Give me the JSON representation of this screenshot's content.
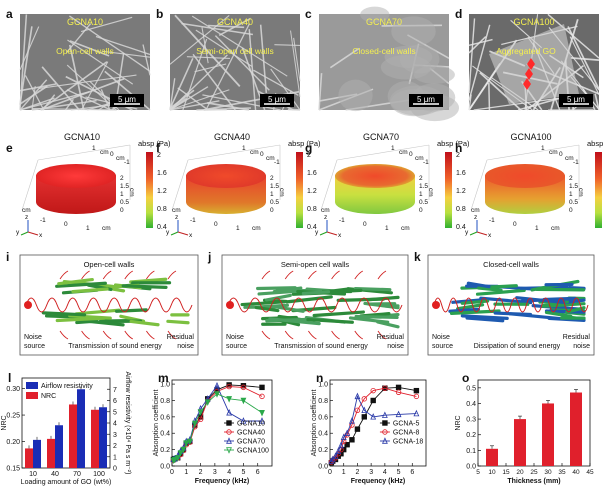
{
  "row1": {
    "panels": [
      {
        "letter": "a",
        "title": "GCNA10",
        "note": "Open-cell walls",
        "scale": "5 μm"
      },
      {
        "letter": "b",
        "title": "GCNA40",
        "note": "Semi-open cell walls",
        "scale": "5 μm"
      },
      {
        "letter": "c",
        "title": "GCNA70",
        "note": "Closed-cell walls",
        "scale": "5 μm"
      },
      {
        "letter": "d",
        "title": "GCNA100",
        "note": "Aggregated GO",
        "scale": "5 μm"
      }
    ]
  },
  "row2": {
    "panels": [
      {
        "letter": "e",
        "title": "GCNA10"
      },
      {
        "letter": "f",
        "title": "GCNA40"
      },
      {
        "letter": "g",
        "title": "GCNA70"
      },
      {
        "letter": "h",
        "title": "GCNA100"
      }
    ],
    "colorbar_label": "absp (Pa)",
    "colorbar_ticks": [
      "2",
      "1.6",
      "1.2",
      "0.8",
      "0.4"
    ],
    "axis_unit": "cm",
    "axis_ticks": [
      "1",
      "0",
      "-1",
      "2",
      "1.5",
      "1",
      "0.5",
      "0",
      "-1",
      "0",
      "1"
    ],
    "axis_letters": {
      "x": "x",
      "y": "y",
      "z": "z"
    }
  },
  "row3": {
    "panels": [
      {
        "letter": "i",
        "title": "Open-cell walls",
        "left": "Noise\nsource",
        "middle": "Transmission of sound energy",
        "right": "Residual\nnoise"
      },
      {
        "letter": "j",
        "title": "Semi-open cell walls",
        "left": "Noise\nsource",
        "middle": "Transmission of sound energy",
        "right": "Residual\nnoise"
      },
      {
        "letter": "k",
        "title": "Closed-cell walls",
        "left": "Noise\nsource",
        "middle": "Dissipation of sound energy",
        "right": "Residual\nnoise"
      }
    ]
  },
  "chart_data": [
    {
      "letter": "l",
      "type": "bar",
      "categories": [
        "10",
        "40",
        "70",
        "100"
      ],
      "series": [
        {
          "name": "Airflow resistivity",
          "color": "#1a2db5",
          "axis": "right",
          "values": [
            2.5,
            3.8,
            7.0,
            5.4
          ]
        },
        {
          "name": "NRC",
          "color": "#e0202c",
          "axis": "left",
          "values": [
            0.187,
            0.205,
            0.27,
            0.26
          ]
        }
      ],
      "xlabel": "Loading amount of GO (wt%)",
      "ylabel": "NRC",
      "ylabel_right": "Airflow resistivity (×10⁴ Pa s m⁻²)",
      "ylim": [
        0.15,
        0.32
      ],
      "yticks": [
        "0.15",
        "0.20",
        "0.25",
        "0.30"
      ],
      "ylim_right": [
        0,
        8
      ],
      "yticks_right": [
        "0",
        "1",
        "2",
        "3",
        "4",
        "5",
        "6",
        "7"
      ]
    },
    {
      "letter": "m",
      "type": "line",
      "x": [
        0.1,
        0.2,
        0.4,
        0.6,
        0.8,
        1.0,
        1.25,
        1.6,
        2.0,
        2.5,
        3.15,
        4.0,
        5.0,
        6.3
      ],
      "series": [
        {
          "name": "GCNA10",
          "color": "#111111",
          "marker": "square",
          "values": [
            0.08,
            0.09,
            0.1,
            0.15,
            0.2,
            0.28,
            0.3,
            0.5,
            0.6,
            0.82,
            0.93,
            0.99,
            0.98,
            0.96
          ]
        },
        {
          "name": "GCNA40",
          "color": "#e0202c",
          "marker": "circle",
          "values": [
            0.07,
            0.08,
            0.1,
            0.14,
            0.19,
            0.26,
            0.29,
            0.48,
            0.57,
            0.8,
            0.91,
            0.97,
            0.96,
            0.85
          ]
        },
        {
          "name": "GCNA70",
          "color": "#2a3aa8",
          "marker": "triangle",
          "values": [
            0.08,
            0.09,
            0.12,
            0.18,
            0.22,
            0.3,
            0.32,
            0.55,
            0.7,
            0.82,
            0.98,
            0.65,
            0.55,
            0.55
          ]
        },
        {
          "name": "GCNA100",
          "color": "#2aa84a",
          "marker": "triangle-down",
          "values": [
            0.07,
            0.08,
            0.1,
            0.16,
            0.2,
            0.28,
            0.3,
            0.52,
            0.66,
            0.78,
            0.88,
            0.82,
            0.8,
            0.65
          ]
        }
      ],
      "xlabel": "Frequency (kHz)",
      "ylabel": "Absorption coefficient",
      "xlim": [
        0,
        7
      ],
      "xticks": [
        "0",
        "1",
        "2",
        "3",
        "4",
        "5",
        "6"
      ],
      "ylim": [
        0,
        1.05
      ],
      "yticks": [
        "0.0",
        "0.2",
        "0.4",
        "0.6",
        "0.8",
        "1.0"
      ]
    },
    {
      "letter": "n",
      "type": "line",
      "x": [
        0.1,
        0.2,
        0.4,
        0.6,
        0.8,
        1.0,
        1.25,
        1.6,
        2.0,
        2.5,
        3.15,
        4.0,
        5.0,
        6.3
      ],
      "series": [
        {
          "name": "GCNA-5",
          "color": "#111111",
          "marker": "square",
          "values": [
            0.04,
            0.06,
            0.08,
            0.12,
            0.15,
            0.2,
            0.26,
            0.32,
            0.45,
            0.6,
            0.8,
            0.95,
            0.96,
            0.92
          ]
        },
        {
          "name": "GCNA-8",
          "color": "#e0202c",
          "marker": "circle",
          "values": [
            0.05,
            0.07,
            0.1,
            0.15,
            0.2,
            0.3,
            0.38,
            0.5,
            0.68,
            0.82,
            0.92,
            0.95,
            0.9,
            0.85
          ]
        },
        {
          "name": "GCNA-18",
          "color": "#2a3aa8",
          "marker": "triangle",
          "values": [
            0.06,
            0.08,
            0.12,
            0.18,
            0.25,
            0.35,
            0.4,
            0.55,
            0.85,
            0.68,
            0.6,
            0.62,
            0.63,
            0.64
          ]
        }
      ],
      "xlabel": "Frequency (kHz)",
      "ylabel": "Absorption coefficient",
      "xlim": [
        0,
        7
      ],
      "xticks": [
        "0",
        "1",
        "2",
        "3",
        "4",
        "5",
        "6"
      ],
      "ylim": [
        0,
        1.05
      ],
      "yticks": [
        "0.0",
        "0.2",
        "0.4",
        "0.6",
        "0.8",
        "1.0"
      ]
    },
    {
      "letter": "o",
      "type": "bar",
      "categories": [
        10,
        20,
        30,
        40
      ],
      "values": [
        0.11,
        0.3,
        0.4,
        0.47
      ],
      "color": "#e0202c",
      "xlabel": "Thickness (mm)",
      "ylabel": "NRC",
      "xlim": [
        5,
        45
      ],
      "xticks": [
        "5",
        "10",
        "15",
        "20",
        "25",
        "30",
        "35",
        "40",
        "45"
      ],
      "ylim": [
        0,
        0.55
      ],
      "yticks": [
        "0.0",
        "0.1",
        "0.2",
        "0.3",
        "0.4",
        "0.5"
      ]
    }
  ]
}
